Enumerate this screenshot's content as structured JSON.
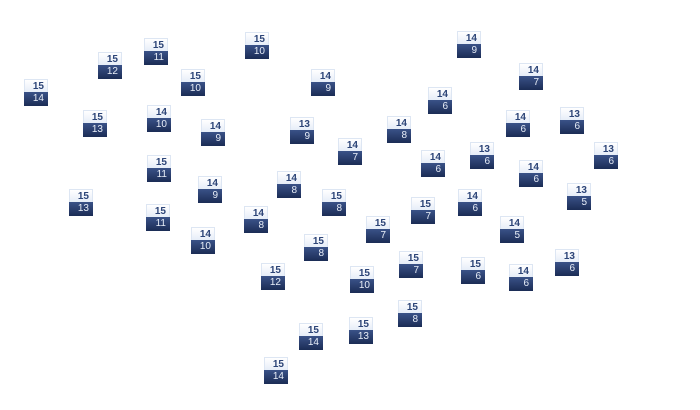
{
  "nodes": [
    {
      "top": "15",
      "bottom": "14"
    },
    {
      "top": "15",
      "bottom": "12"
    },
    {
      "top": "15",
      "bottom": "11"
    },
    {
      "top": "15",
      "bottom": "10"
    },
    {
      "top": "15",
      "bottom": "10"
    },
    {
      "top": "14",
      "bottom": "9"
    },
    {
      "top": "15",
      "bottom": "13"
    },
    {
      "top": "14",
      "bottom": "10"
    },
    {
      "top": "14",
      "bottom": "9"
    },
    {
      "top": "13",
      "bottom": "9"
    },
    {
      "top": "15",
      "bottom": "11"
    },
    {
      "top": "14",
      "bottom": "9"
    },
    {
      "top": "14",
      "bottom": "8"
    },
    {
      "top": "15",
      "bottom": "8"
    },
    {
      "top": "15",
      "bottom": "13"
    },
    {
      "top": "15",
      "bottom": "11"
    },
    {
      "top": "14",
      "bottom": "10"
    },
    {
      "top": "14",
      "bottom": "8"
    },
    {
      "top": "15",
      "bottom": "8"
    },
    {
      "top": "15",
      "bottom": "12"
    },
    {
      "top": "15",
      "bottom": "14"
    },
    {
      "top": "15",
      "bottom": "14"
    },
    {
      "top": "14",
      "bottom": "9"
    },
    {
      "top": "14",
      "bottom": "7"
    },
    {
      "top": "14",
      "bottom": "6"
    },
    {
      "top": "14",
      "bottom": "8"
    },
    {
      "top": "14",
      "bottom": "7"
    },
    {
      "top": "14",
      "bottom": "6"
    },
    {
      "top": "13",
      "bottom": "6"
    },
    {
      "top": "13",
      "bottom": "6"
    },
    {
      "top": "13",
      "bottom": "6"
    },
    {
      "top": "14",
      "bottom": "6"
    },
    {
      "top": "14",
      "bottom": "6"
    },
    {
      "top": "15",
      "bottom": "7"
    },
    {
      "top": "14",
      "bottom": "6"
    },
    {
      "top": "13",
      "bottom": "5"
    },
    {
      "top": "15",
      "bottom": "7"
    },
    {
      "top": "14",
      "bottom": "5"
    },
    {
      "top": "15",
      "bottom": "7"
    },
    {
      "top": "15",
      "bottom": "10"
    },
    {
      "top": "15",
      "bottom": "6"
    },
    {
      "top": "14",
      "bottom": "6"
    },
    {
      "top": "13",
      "bottom": "6"
    },
    {
      "top": "15",
      "bottom": "8"
    },
    {
      "top": "15",
      "bottom": "13"
    }
  ]
}
